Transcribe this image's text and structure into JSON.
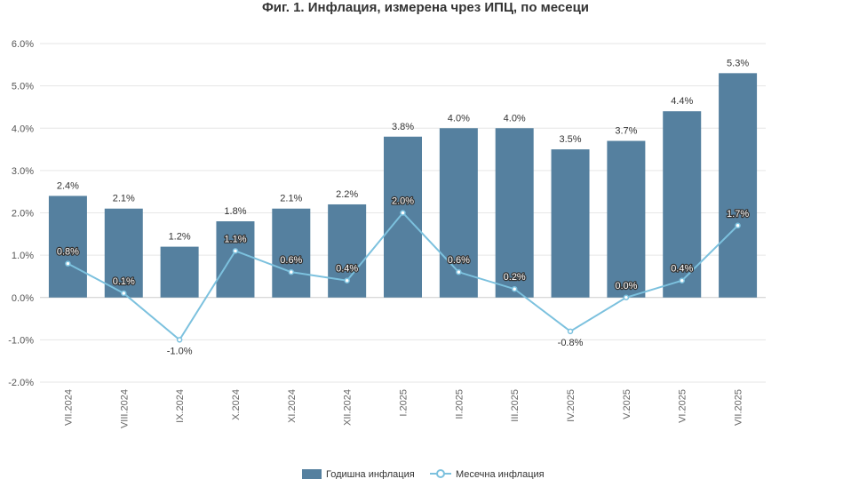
{
  "chart_data": {
    "type": "bar",
    "title": "Фиг. 1. Инфлация, измерена чрез ИПЦ, по месеци",
    "categories": [
      "VII.2024",
      "VIII.2024",
      "IX.2024",
      "X.2024",
      "XI.2024",
      "XII.2024",
      "I.2025",
      "II.2025",
      "III.2025",
      "IV.2025",
      "V.2025",
      "VI.2025",
      "VII.2025"
    ],
    "series": [
      {
        "name": "Годишна инфлация",
        "type": "bar",
        "color": "#55809F",
        "values": [
          2.4,
          2.1,
          1.2,
          1.8,
          2.1,
          2.2,
          3.8,
          4.0,
          4.0,
          3.5,
          3.7,
          4.4,
          5.3
        ],
        "labels": [
          "2.4%",
          "2.1%",
          "1.2%",
          "1.8%",
          "2.1%",
          "2.2%",
          "3.8%",
          "4.0%",
          "4.0%",
          "3.5%",
          "3.7%",
          "4.4%",
          "5.3%"
        ]
      },
      {
        "name": "Месечна инфлация",
        "type": "line",
        "color": "#7CC1DE",
        "values": [
          0.8,
          0.1,
          -1.0,
          1.1,
          0.6,
          0.4,
          2.0,
          0.6,
          0.2,
          -0.8,
          0.0,
          0.4,
          1.7
        ],
        "labels": [
          "0.8%",
          "0.1%",
          "-1.0%",
          "1.1%",
          "0.6%",
          "0.4%",
          "2.0%",
          "0.6%",
          "0.2%",
          "-0.8%",
          "0.0%",
          "0.4%",
          "1.7%"
        ]
      }
    ],
    "ylim": [
      -2.0,
      6.0
    ],
    "yticks": [
      -2.0,
      -1.0,
      0.0,
      1.0,
      2.0,
      3.0,
      4.0,
      5.0,
      6.0
    ],
    "ytick_labels": [
      "-2.0%",
      "-1.0%",
      "0.0%",
      "1.0%",
      "2.0%",
      "3.0%",
      "4.0%",
      "5.0%",
      "6.0%"
    ],
    "xlabel": "",
    "ylabel": "",
    "grid": true,
    "legend_position": "bottom"
  }
}
